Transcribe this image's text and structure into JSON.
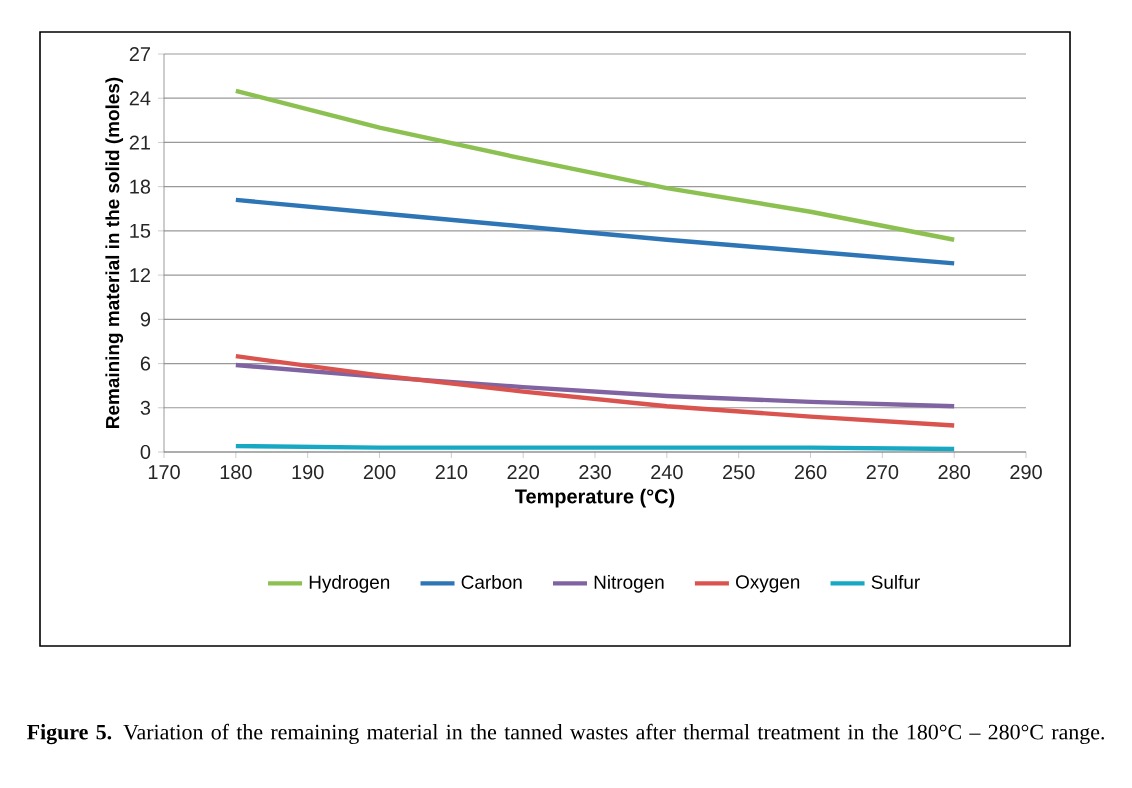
{
  "chart_data": {
    "type": "line",
    "xlabel": "Temperature  (°C)",
    "ylabel": "Remaining material  in the solid (moles)",
    "x": [
      180,
      200,
      220,
      240,
      260,
      280
    ],
    "series": [
      {
        "name": "Hydrogen",
        "color": "#8cc152",
        "values": [
          24.5,
          22.0,
          19.9,
          17.9,
          16.3,
          14.4
        ]
      },
      {
        "name": "Carbon",
        "color": "#2e75b6",
        "values": [
          17.1,
          16.2,
          15.3,
          14.4,
          13.6,
          12.8
        ]
      },
      {
        "name": "Nitrogen",
        "color": "#8064a2",
        "values": [
          5.9,
          5.1,
          4.4,
          3.8,
          3.4,
          3.1
        ]
      },
      {
        "name": "Oxygen",
        "color": "#d9534f",
        "values": [
          6.5,
          5.2,
          4.1,
          3.1,
          2.4,
          1.8
        ]
      },
      {
        "name": "Sulfur",
        "color": "#17a9c4",
        "values": [
          0.4,
          0.3,
          0.3,
          0.3,
          0.3,
          0.2
        ]
      }
    ],
    "xlim": [
      170,
      290
    ],
    "xticks": [
      170,
      180,
      190,
      200,
      210,
      220,
      230,
      240,
      250,
      260,
      270,
      280,
      290
    ],
    "ylim": [
      0,
      27
    ],
    "yticks": [
      0,
      3,
      6,
      9,
      12,
      15,
      18,
      21,
      24,
      27
    ],
    "grid": "y",
    "legend": "bottom",
    "annotations": [
      "**Figure 5.** Variation of the remaining material in the tanned wastes after thermal treatment in the 180°C – 280°C range."
    ]
  }
}
